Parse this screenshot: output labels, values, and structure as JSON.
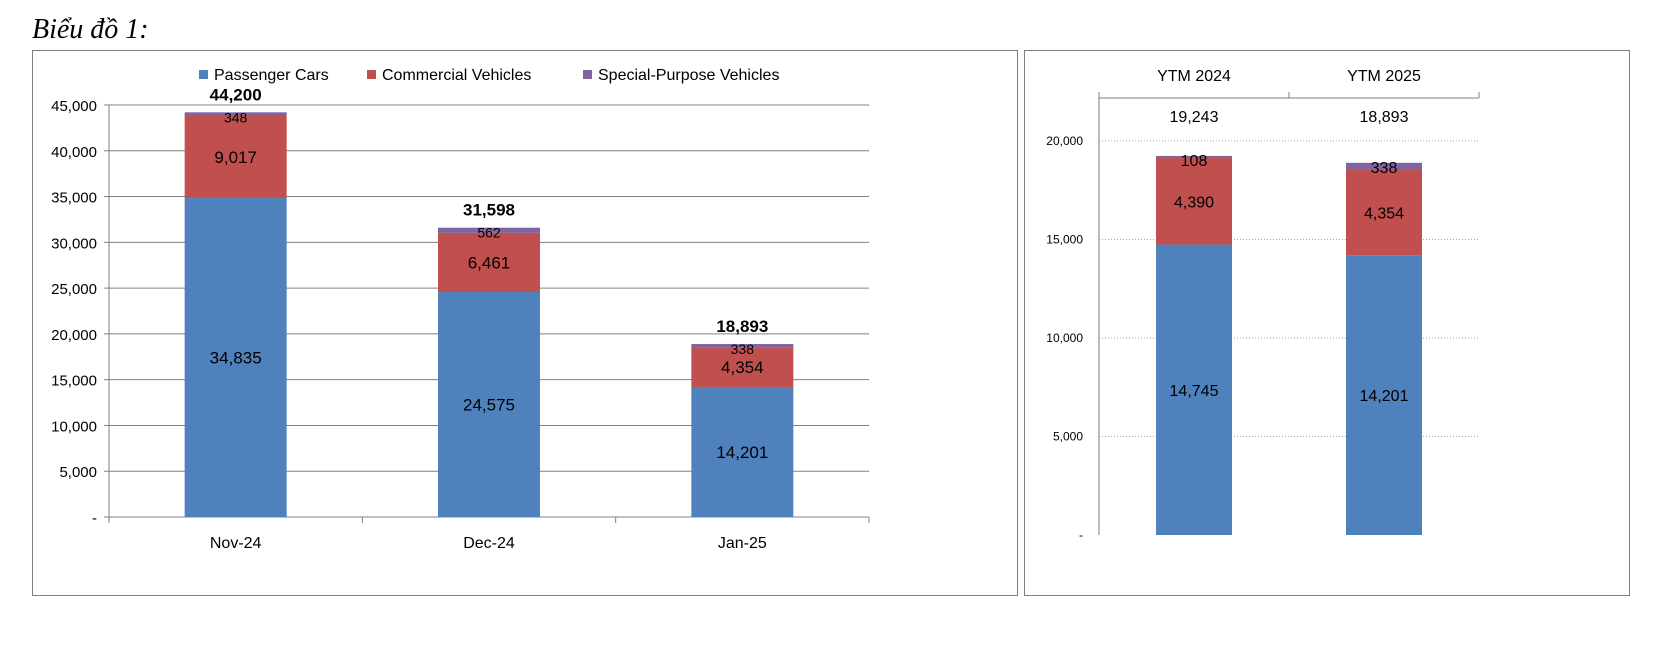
{
  "caption": "Biểu đồ 1:",
  "colors": {
    "passenger": "#4f81bd",
    "commercial": "#c0504d",
    "special": "#8064a2",
    "grid": "#808080"
  },
  "legend": [
    "Passenger Cars",
    "Commercial Vehicles",
    "Special-Purpose Vehicles"
  ],
  "chart_data": [
    {
      "type": "bar",
      "stacked": true,
      "categories": [
        "Nov-24",
        "Dec-24",
        "Jan-25"
      ],
      "series": [
        {
          "name": "Passenger Cars",
          "values": [
            34835,
            24575,
            14201
          ],
          "labels": [
            "34,835",
            "24,575",
            "14,201"
          ]
        },
        {
          "name": "Commercial Vehicles",
          "values": [
            9017,
            6461,
            4354
          ],
          "labels": [
            "9,017",
            "6,461",
            "4,354"
          ]
        },
        {
          "name": "Special-Purpose Vehicles",
          "values": [
            348,
            562,
            338
          ],
          "labels": [
            "348",
            "562",
            "338"
          ]
        }
      ],
      "totals": [
        "44,200",
        "31,598",
        "18,893"
      ],
      "ylim": [
        0,
        45000
      ],
      "yticks": [
        0,
        5000,
        10000,
        15000,
        20000,
        25000,
        30000,
        35000,
        40000,
        45000
      ],
      "ytick_labels": [
        "-",
        "5,000",
        "10,000",
        "15,000",
        "20,000",
        "25,000",
        "30,000",
        "35,000",
        "40,000",
        "45,000"
      ],
      "grid": true,
      "legend_position": "top"
    },
    {
      "type": "bar",
      "stacked": true,
      "categories": [
        "YTM 2024",
        "YTM 2025"
      ],
      "series": [
        {
          "name": "Passenger Cars",
          "values": [
            14745,
            14201
          ],
          "labels": [
            "14,745",
            "14,201"
          ]
        },
        {
          "name": "Commercial Vehicles",
          "values": [
            4390,
            4354
          ],
          "labels": [
            "4,390",
            "4,354"
          ]
        },
        {
          "name": "Special-Purpose Vehicles",
          "values": [
            108,
            338
          ],
          "labels": [
            "108",
            "338"
          ]
        }
      ],
      "totals": [
        "19,243",
        "18,893"
      ],
      "ylim": [
        0,
        20000
      ],
      "yticks": [
        0,
        5000,
        10000,
        15000,
        20000
      ],
      "ytick_labels": [
        "-",
        "5,000",
        "10,000",
        "15,000",
        "20,000"
      ],
      "grid": true,
      "grid_style": "dotted",
      "category_axis_position": "top"
    }
  ]
}
